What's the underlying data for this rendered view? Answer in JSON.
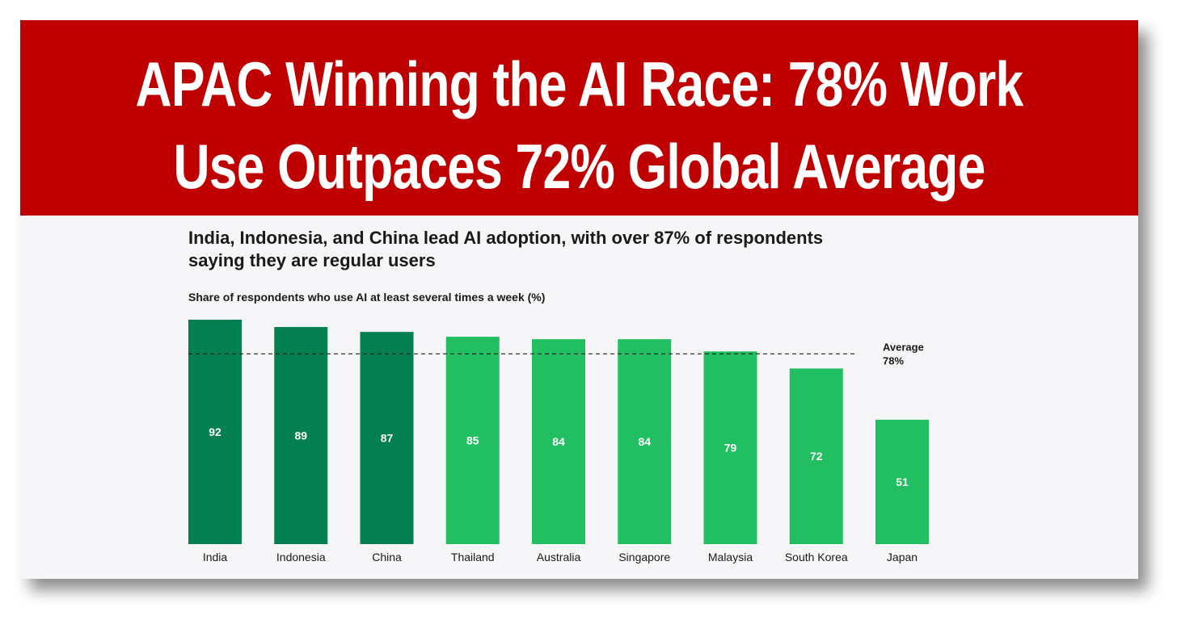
{
  "banner": {
    "title_line1": "APAC Winning the AI Race: 78% Work",
    "title_line2": "Use Outpaces 72% Global Average"
  },
  "colors": {
    "banner": "#bf0000",
    "leader_bar": "#037f51",
    "other_bar": "#21bf61"
  },
  "chart_data": {
    "type": "bar",
    "title": "India, Indonesia, and China lead AI adoption, with over 87% of respondents saying they are regular users",
    "title_line1": "India, Indonesia, and China lead AI adoption, with over 87% of respondents",
    "title_line2": "saying they are regular users",
    "subtitle": "Share of respondents who use AI at least several times a week (%)",
    "categories": [
      "India",
      "Indonesia",
      "China",
      "Thailand",
      "Australia",
      "Singapore",
      "Malaysia",
      "South Korea",
      "Japan"
    ],
    "values": [
      92,
      89,
      87,
      85,
      84,
      84,
      79,
      72,
      51
    ],
    "highlight": [
      true,
      true,
      true,
      false,
      false,
      false,
      false,
      false,
      false
    ],
    "average": {
      "value": 78,
      "label": "Average",
      "value_label": "78%"
    },
    "xlabel": "",
    "ylabel": "",
    "ylim": [
      0,
      92
    ],
    "grid": false
  }
}
